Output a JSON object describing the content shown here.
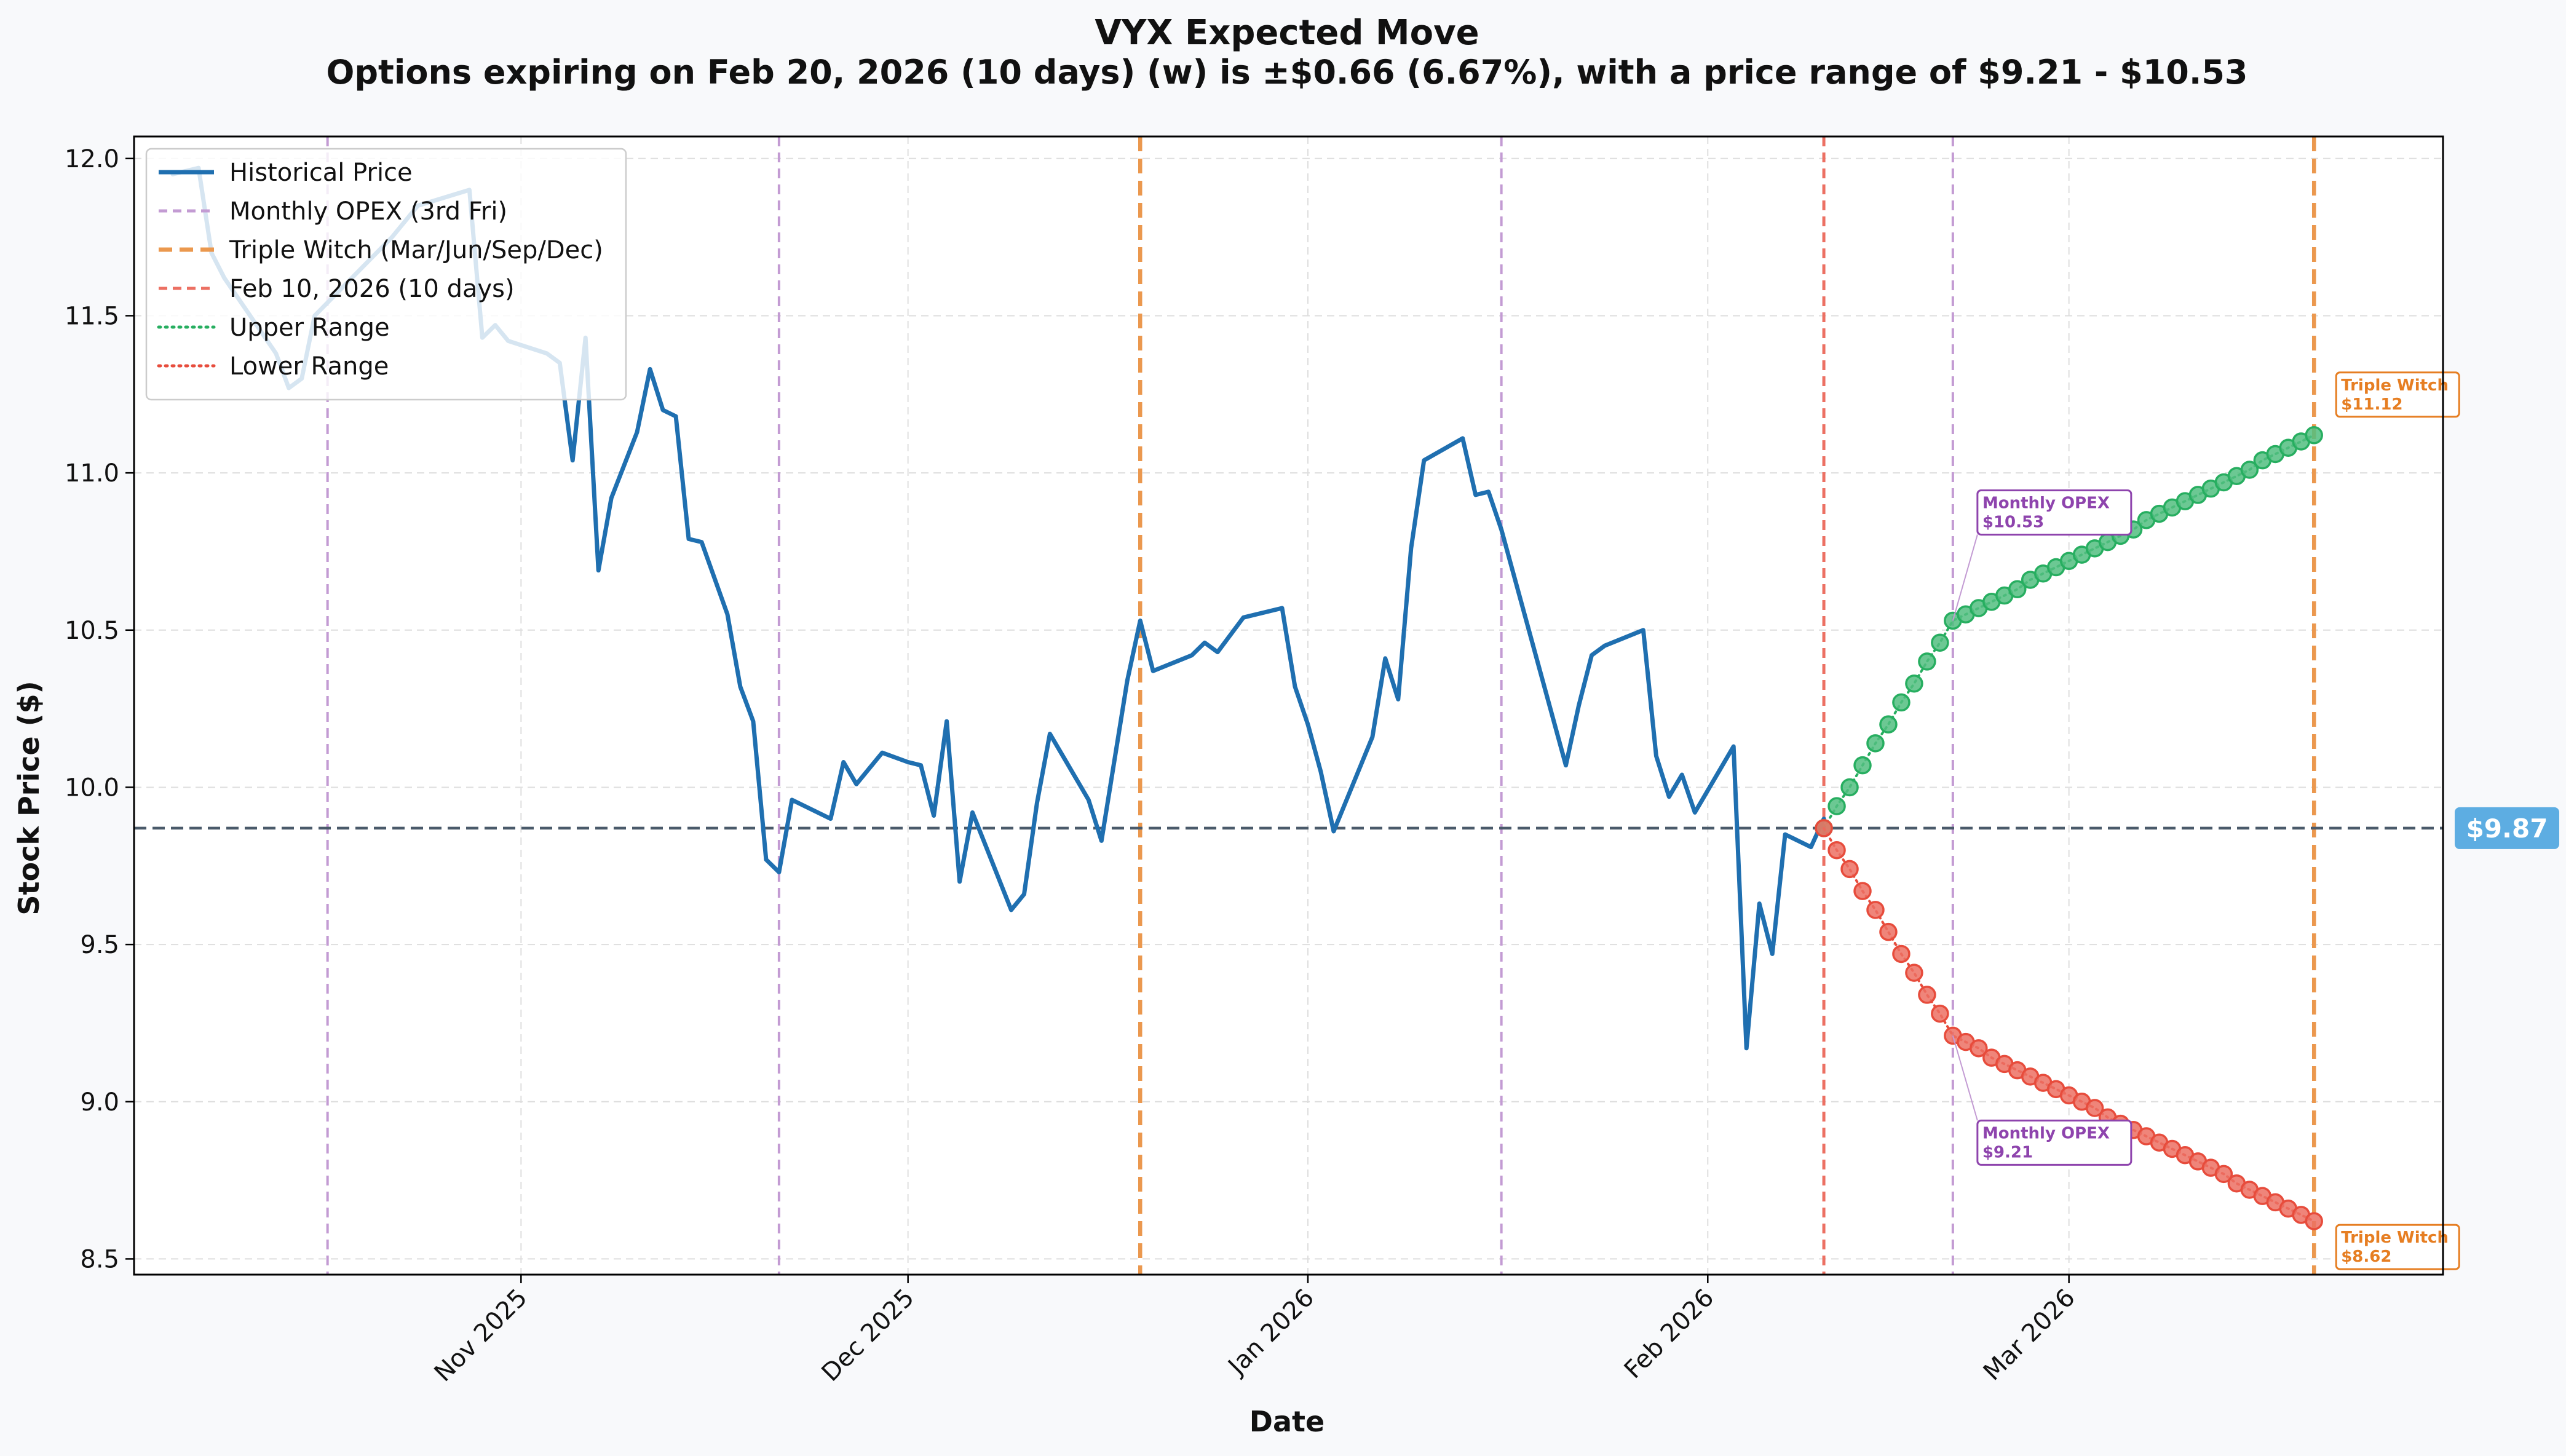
{
  "chart_data": {
    "type": "line",
    "title": "VYX Expected Move",
    "subtitle": "Options expiring on Feb 20, 2026 (10 days) (w) is ±$0.66 (6.67%), with a price range of $9.21 - $10.53",
    "xlabel": "Date",
    "ylabel": "Stock Price ($)",
    "ylim": [
      8.45,
      12.07
    ],
    "yticks": [
      8.5,
      9.0,
      9.5,
      10.0,
      10.5,
      11.0,
      11.5,
      12.0
    ],
    "ytick_labels": [
      "8.5",
      "9.0",
      "9.5",
      "10.0",
      "10.5",
      "11.0",
      "11.5",
      "12.0"
    ],
    "xlim": [
      "2025-10-02",
      "2026-03-30"
    ],
    "xticks": [
      {
        "date": "2025-11-01",
        "label": "Nov 2025"
      },
      {
        "date": "2025-12-01",
        "label": "Dec 2025"
      },
      {
        "date": "2026-01-01",
        "label": "Jan 2026"
      },
      {
        "date": "2026-02-01",
        "label": "Feb 2026"
      },
      {
        "date": "2026-03-01",
        "label": "Mar 2026"
      }
    ],
    "grid": true,
    "legend_position": "top-left",
    "current_price": 9.87,
    "current_price_label": "$9.87",
    "vlines": [
      {
        "date": "2025-10-17",
        "kind": "opex"
      },
      {
        "date": "2025-11-21",
        "kind": "opex"
      },
      {
        "date": "2025-12-19",
        "kind": "witch"
      },
      {
        "date": "2026-01-16",
        "kind": "opex"
      },
      {
        "date": "2026-02-10",
        "kind": "today"
      },
      {
        "date": "2026-02-20",
        "kind": "opex"
      },
      {
        "date": "2026-03-20",
        "kind": "witch"
      }
    ],
    "historical": {
      "name": "Historical Price",
      "color": "#1f6fb0",
      "points": [
        [
          "2025-10-05",
          11.95
        ],
        [
          "2025-10-07",
          11.97
        ],
        [
          "2025-10-08",
          11.7
        ],
        [
          "2025-10-09",
          11.62
        ],
        [
          "2025-10-13",
          11.38
        ],
        [
          "2025-10-14",
          11.27
        ],
        [
          "2025-10-15",
          11.3
        ],
        [
          "2025-10-16",
          11.5
        ],
        [
          "2025-10-22",
          11.75
        ],
        [
          "2025-10-24",
          11.85
        ],
        [
          "2025-10-28",
          11.9
        ],
        [
          "2025-10-29",
          11.43
        ],
        [
          "2025-10-30",
          11.47
        ],
        [
          "2025-10-31",
          11.42
        ],
        [
          "2025-11-03",
          11.38
        ],
        [
          "2025-11-04",
          11.35
        ],
        [
          "2025-11-05",
          11.04
        ],
        [
          "2025-11-06",
          11.43
        ],
        [
          "2025-11-07",
          10.69
        ],
        [
          "2025-11-08",
          10.92
        ],
        [
          "2025-11-10",
          11.13
        ],
        [
          "2025-11-11",
          11.33
        ],
        [
          "2025-11-12",
          11.2
        ],
        [
          "2025-11-13",
          11.18
        ],
        [
          "2025-11-14",
          10.79
        ],
        [
          "2025-11-15",
          10.78
        ],
        [
          "2025-11-17",
          10.55
        ],
        [
          "2025-11-18",
          10.32
        ],
        [
          "2025-11-19",
          10.21
        ],
        [
          "2025-11-20",
          9.77
        ],
        [
          "2025-11-21",
          9.73
        ],
        [
          "2025-11-22",
          9.96
        ],
        [
          "2025-11-25",
          9.9
        ],
        [
          "2025-11-26",
          10.08
        ],
        [
          "2025-11-27",
          10.01
        ],
        [
          "2025-11-29",
          10.11
        ],
        [
          "2025-12-01",
          10.08
        ],
        [
          "2025-12-02",
          10.07
        ],
        [
          "2025-12-03",
          9.91
        ],
        [
          "2025-12-04",
          10.21
        ],
        [
          "2025-12-05",
          9.7
        ],
        [
          "2025-12-06",
          9.92
        ],
        [
          "2025-12-09",
          9.61
        ],
        [
          "2025-12-10",
          9.66
        ],
        [
          "2025-12-11",
          9.95
        ],
        [
          "2025-12-12",
          10.17
        ],
        [
          "2025-12-13",
          10.1
        ],
        [
          "2025-12-15",
          9.96
        ],
        [
          "2025-12-16",
          9.83
        ],
        [
          "2025-12-18",
          10.34
        ],
        [
          "2025-12-19",
          10.53
        ],
        [
          "2025-12-20",
          10.37
        ],
        [
          "2025-12-23",
          10.42
        ],
        [
          "2025-12-24",
          10.46
        ],
        [
          "2025-12-25",
          10.43
        ],
        [
          "2025-12-27",
          10.54
        ],
        [
          "2025-12-30",
          10.57
        ],
        [
          "2025-12-31",
          10.32
        ],
        [
          "2026-01-01",
          10.2
        ],
        [
          "2026-01-02",
          10.05
        ],
        [
          "2026-01-03",
          9.86
        ],
        [
          "2026-01-06",
          10.16
        ],
        [
          "2026-01-07",
          10.41
        ],
        [
          "2026-01-08",
          10.28
        ],
        [
          "2026-01-09",
          10.76
        ],
        [
          "2026-01-10",
          11.04
        ],
        [
          "2026-01-13",
          11.11
        ],
        [
          "2026-01-14",
          10.93
        ],
        [
          "2026-01-15",
          10.94
        ],
        [
          "2026-01-16",
          10.82
        ],
        [
          "2026-01-21",
          10.07
        ],
        [
          "2026-01-22",
          10.26
        ],
        [
          "2026-01-23",
          10.42
        ],
        [
          "2026-01-24",
          10.45
        ],
        [
          "2026-01-27",
          10.5
        ],
        [
          "2026-01-28",
          10.1
        ],
        [
          "2026-01-29",
          9.97
        ],
        [
          "2026-01-30",
          10.04
        ],
        [
          "2026-01-31",
          9.92
        ],
        [
          "2026-02-03",
          10.13
        ],
        [
          "2026-02-04",
          9.17
        ],
        [
          "2026-02-05",
          9.63
        ],
        [
          "2026-02-06",
          9.47
        ],
        [
          "2026-02-07",
          9.85
        ],
        [
          "2026-02-09",
          9.81
        ],
        [
          "2026-02-10",
          9.9
        ]
      ]
    },
    "upper_range": {
      "name": "Upper Range",
      "color": "#27ae60",
      "start_date": "2026-02-10",
      "values": [
        9.87,
        9.94,
        10.0,
        10.07,
        10.14,
        10.2,
        10.27,
        10.33,
        10.4,
        10.46,
        10.53,
        10.55,
        10.57,
        10.59,
        10.61,
        10.63,
        10.66,
        10.68,
        10.7,
        10.72,
        10.74,
        10.76,
        10.78,
        10.8,
        10.82,
        10.85,
        10.87,
        10.89,
        10.91,
        10.93,
        10.95,
        10.97,
        10.99,
        11.01,
        11.04,
        11.06,
        11.08,
        11.1,
        11.12
      ]
    },
    "lower_range": {
      "name": "Lower Range",
      "color": "#e74c3c",
      "start_date": "2026-02-10",
      "values": [
        9.87,
        9.8,
        9.74,
        9.67,
        9.61,
        9.54,
        9.47,
        9.41,
        9.34,
        9.28,
        9.21,
        9.19,
        9.17,
        9.14,
        9.12,
        9.1,
        9.08,
        9.06,
        9.04,
        9.02,
        9.0,
        8.98,
        8.95,
        8.93,
        8.91,
        8.89,
        8.87,
        8.85,
        8.83,
        8.81,
        8.79,
        8.77,
        8.74,
        8.72,
        8.7,
        8.68,
        8.66,
        8.64,
        8.62
      ]
    },
    "annotations": [
      {
        "title": "Monthly OPEX",
        "value": "$10.53",
        "date": "2026-02-20",
        "y": 10.53,
        "kind": "opex",
        "box_anchor": "upper"
      },
      {
        "title": "Monthly OPEX",
        "value": "$9.21",
        "date": "2026-02-20",
        "y": 9.21,
        "kind": "opex",
        "box_anchor": "lower"
      },
      {
        "title": "Triple Witch",
        "value": "$11.12",
        "date": "2026-03-20",
        "y": 11.12,
        "kind": "witch",
        "box_anchor": "upper"
      },
      {
        "title": "Triple Witch",
        "value": "$8.62",
        "date": "2026-03-20",
        "y": 8.62,
        "kind": "witch",
        "box_anchor": "lower"
      }
    ],
    "legend": [
      {
        "label": "Historical Price",
        "style": "solid",
        "color": "#1f6fb0"
      },
      {
        "label": "Monthly OPEX (3rd Fri)",
        "style": "dashed",
        "color": "#c39bd3"
      },
      {
        "label": "Triple Witch (Mar/Jun/Sep/Dec)",
        "style": "dashed-thick",
        "color": "#eb984e"
      },
      {
        "label": "Feb 10, 2026 (10 days)",
        "style": "dashed",
        "color": "#ec7063"
      },
      {
        "label": "Upper Range",
        "style": "dotted",
        "color": "#27ae60"
      },
      {
        "label": "Lower Range",
        "style": "dotted",
        "color": "#e74c3c"
      }
    ],
    "colors": {
      "opex": "#c39bd3",
      "opex_text": "#8e44ad",
      "witch": "#eb984e",
      "witch_text": "#e67e22",
      "today": "#ec7063",
      "current_line": "#4a5a6a",
      "price_badge": "#5dade2"
    }
  }
}
